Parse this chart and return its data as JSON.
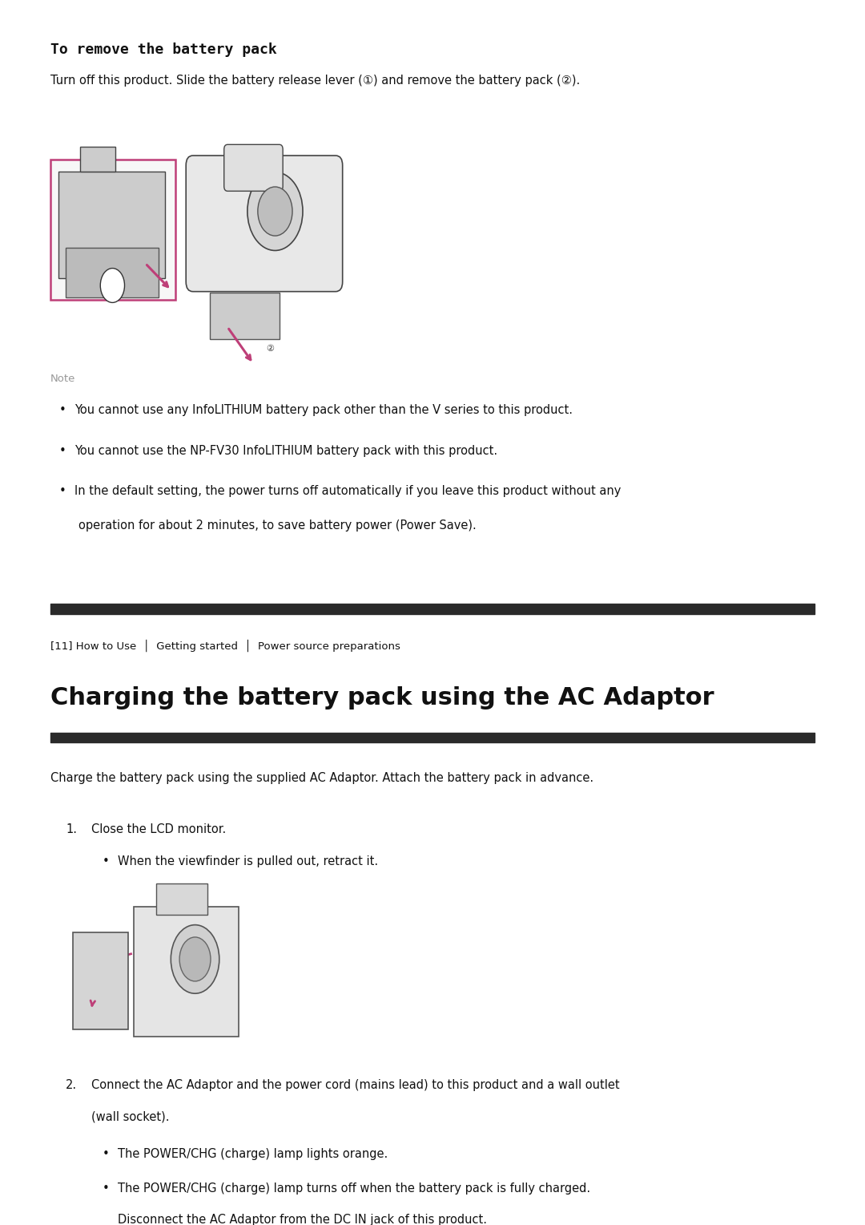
{
  "bg_color": "#ffffff",
  "title1": "To remove the battery pack",
  "title1_font": 13,
  "para1": "Turn off this product. Slide the battery release lever (①) and remove the battery pack (②).",
  "note_label": "Note",
  "note_bullet1": "You cannot use any InfoLITHIUM battery pack other than the V series to this product.",
  "note_bullet2": "You cannot use the NP-FV30 InfoLITHIUM battery pack with this product.",
  "note_bullet3a": "In the default setting, the power turns off automatically if you leave this product without any",
  "note_bullet3b": "operation for about 2 minutes, to save battery power (Power Save).",
  "divider_color": "#2a2a2a",
  "breadcrumb": "[11] How to Use  │  Getting started  │  Power source preparations",
  "title2": "Charging the battery pack using the AC Adaptor",
  "title2_font": 22,
  "intro": "Charge the battery pack using the supplied AC Adaptor. Attach the battery pack in advance.",
  "step1_text": "Close the LCD monitor.",
  "step1_bullet": "When the viewfinder is pulled out, retract it.",
  "step2_line1": "Connect the AC Adaptor and the power cord (mains lead) to this product and a wall outlet",
  "step2_line2": "(wall socket).",
  "step2_bullet1": "The POWER/CHG (charge) lamp lights orange.",
  "step2_bullet2a": "The POWER/CHG (charge) lamp turns off when the battery pack is fully charged.",
  "step2_bullet2b": "Disconnect the AC Adaptor from the DC IN jack of this product.",
  "pink_color": "#be3f78",
  "text_color": "#111111",
  "note_color": "#999999",
  "body_font": 10.5,
  "small_font": 9.5
}
